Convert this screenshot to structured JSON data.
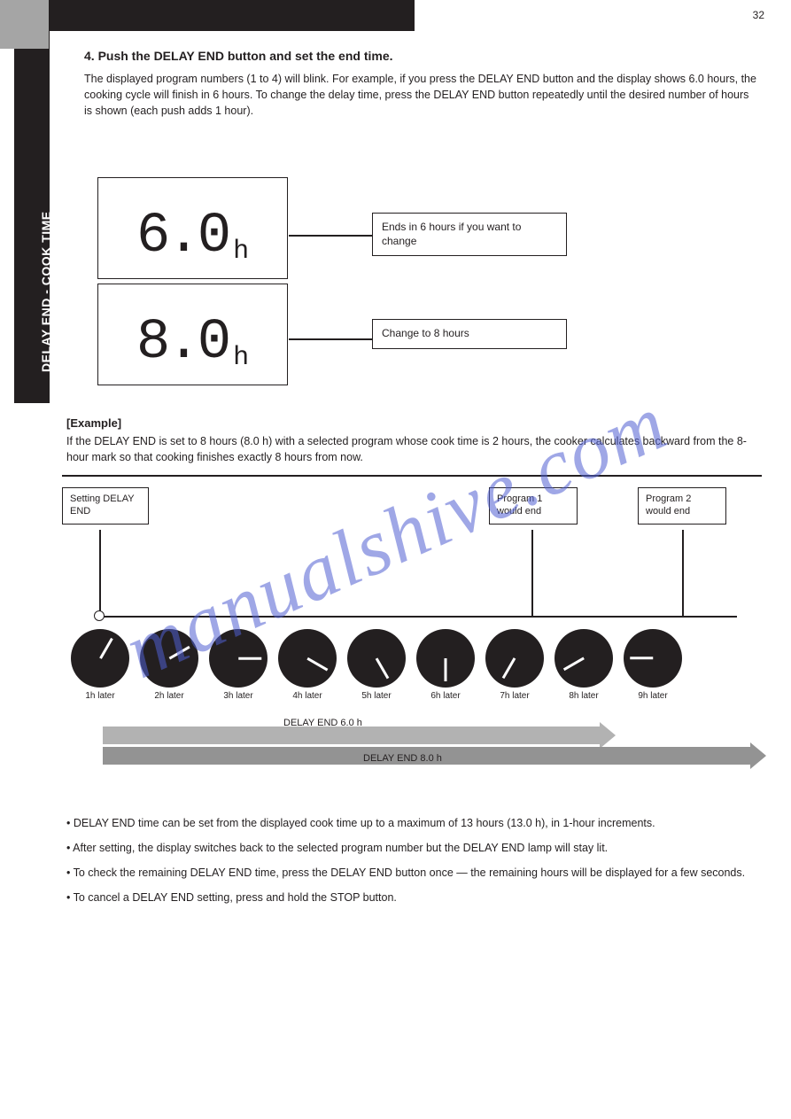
{
  "page_number": "32",
  "side_label": "DELAY END - COOK TIME",
  "heading": "4. Push the DELAY END button and set the end time.",
  "intro": "The displayed program numbers (1 to 4) will blink. For example, if you press the DELAY END button and the display shows 6.0 hours, the cooking cycle will finish in 6 hours. To change the delay time, press the DELAY END button repeatedly until the desired number of hours is shown (each push adds 1 hour).",
  "displays": [
    {
      "value": "6.0",
      "unit": "h",
      "label": "Ends in 6 hours if you want to change"
    },
    {
      "value": "8.0",
      "unit": "h",
      "label": "Change to 8 hours"
    }
  ],
  "example_heading": "[Example]",
  "example_text": "If the DELAY END is set to 8 hours (8.0 h) with a selected program whose cook time is 2 hours, the cooker calculates backward from the 8-hour mark so that cooking finishes exactly 8 hours from now.",
  "timeline": {
    "setting_label": "Setting DELAY END",
    "p1_label": "Program 1 would end",
    "p2_label": "Program 2 would end",
    "clock_labels": [
      "1h later",
      "2h later",
      "3h later",
      "4h later",
      "5h later",
      "6h later",
      "7h later",
      "8h later",
      "9h later"
    ],
    "arrow1_label": "DELAY END 6.0 h",
    "arrow2_label": "DELAY END 8.0 h",
    "colors": {
      "arrow1": "#b2b2b2",
      "arrow2": "#939393",
      "clock": "#231f20"
    }
  },
  "notes": [
    "• DELAY END time can be set from the displayed cook time up to a maximum of 13 hours (13.0 h), in 1-hour increments.",
    "• After setting, the display switches back to the selected program number but the DELAY END lamp will stay lit.",
    "• To check the remaining DELAY END time, press the DELAY END button once — the remaining hours will be displayed for a few seconds.",
    "• To cancel a DELAY END setting, press and hold the STOP button."
  ],
  "watermark": "manualshive.com"
}
